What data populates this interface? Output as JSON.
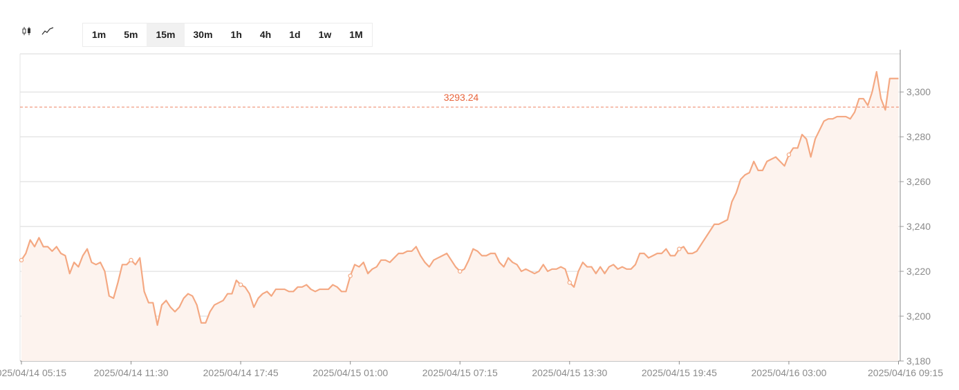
{
  "toolbar": {
    "chart_types": [
      {
        "name": "candlestick-icon",
        "active": false
      },
      {
        "name": "line-chart-icon",
        "active": true
      }
    ],
    "timeframes": [
      "1m",
      "5m",
      "15m",
      "30m",
      "1h",
      "4h",
      "1d",
      "1w",
      "1M"
    ],
    "active_timeframe": "15m"
  },
  "colors": {
    "line": "#f4a882",
    "area": "#fdf3ee",
    "reference": "#e8633a",
    "grid": "#d9d9d9",
    "axis_text": "#8a8a8a"
  },
  "chart_data": {
    "type": "area",
    "reference_line": {
      "value": 3293.24,
      "label": "3293.24"
    },
    "ylim": [
      3180,
      3317
    ],
    "yticks": [
      3180,
      3200,
      3220,
      3240,
      3260,
      3280,
      3300
    ],
    "ytick_labels": [
      "3,180",
      "3,200",
      "3,220",
      "3,240",
      "3,260",
      "3,280",
      "3,300"
    ],
    "xtick_labels": [
      "2025/04/14 05:15",
      "2025/04/14 11:30",
      "2025/04/14 17:45",
      "2025/04/15 01:00",
      "2025/04/15 07:15",
      "2025/04/15 13:30",
      "2025/04/15 19:45",
      "2025/04/16 03:00",
      "2025/04/16 09:15"
    ],
    "xtick_index": [
      0,
      25,
      50,
      75,
      100,
      125,
      150,
      175,
      200
    ],
    "marker_index": [
      0,
      25,
      50,
      75,
      100,
      125,
      150,
      175,
      201
    ],
    "grid": true,
    "series": [
      {
        "values": [
          3225,
          3228,
          3234,
          3231,
          3235,
          3231,
          3231,
          3229,
          3231,
          3228,
          3227,
          3219,
          3224,
          3222,
          3227,
          3230,
          3224,
          3223,
          3224,
          3220,
          3209,
          3208,
          3215,
          3223,
          3223,
          3225,
          3223,
          3226,
          3211,
          3206,
          3206,
          3196,
          3205,
          3207,
          3204,
          3202,
          3204,
          3208,
          3210,
          3209,
          3205,
          3197,
          3197,
          3202,
          3205,
          3206,
          3207,
          3210,
          3210,
          3216,
          3214,
          3213,
          3210,
          3204,
          3208,
          3210,
          3211,
          3209,
          3212,
          3212,
          3212,
          3211,
          3211,
          3213,
          3213,
          3214,
          3212,
          3211,
          3212,
          3212,
          3212,
          3214,
          3213,
          3211,
          3211,
          3218,
          3223,
          3222,
          3224,
          3219,
          3221,
          3222,
          3225,
          3225,
          3224,
          3226,
          3228,
          3228,
          3229,
          3229,
          3231,
          3227,
          3224,
          3222,
          3225,
          3226,
          3227,
          3228,
          3225,
          3222,
          3220,
          3221,
          3225,
          3230,
          3229,
          3227,
          3227,
          3228,
          3228,
          3224,
          3222,
          3226,
          3224,
          3223,
          3220,
          3221,
          3220,
          3219,
          3220,
          3223,
          3220,
          3221,
          3221,
          3222,
          3221,
          3215,
          3213,
          3220,
          3224,
          3222,
          3222,
          3219,
          3222,
          3219,
          3222,
          3223,
          3221,
          3222,
          3221,
          3221,
          3223,
          3228,
          3228,
          3226,
          3227,
          3228,
          3228,
          3230,
          3227,
          3227,
          3230,
          3231,
          3228,
          3228,
          3229,
          3232,
          3235,
          3238,
          3241,
          3241,
          3242,
          3243,
          3251,
          3255,
          3261,
          3263,
          3264,
          3269,
          3265,
          3265,
          3269,
          3270,
          3271,
          3269,
          3267,
          3272,
          3275,
          3275,
          3281,
          3279,
          3271,
          3279,
          3283,
          3287,
          3288,
          3288,
          3289,
          3289,
          3289,
          3288,
          3291,
          3297,
          3297,
          3294,
          3300,
          3309,
          3297,
          3292,
          3306,
          3306,
          3306
        ]
      }
    ]
  }
}
